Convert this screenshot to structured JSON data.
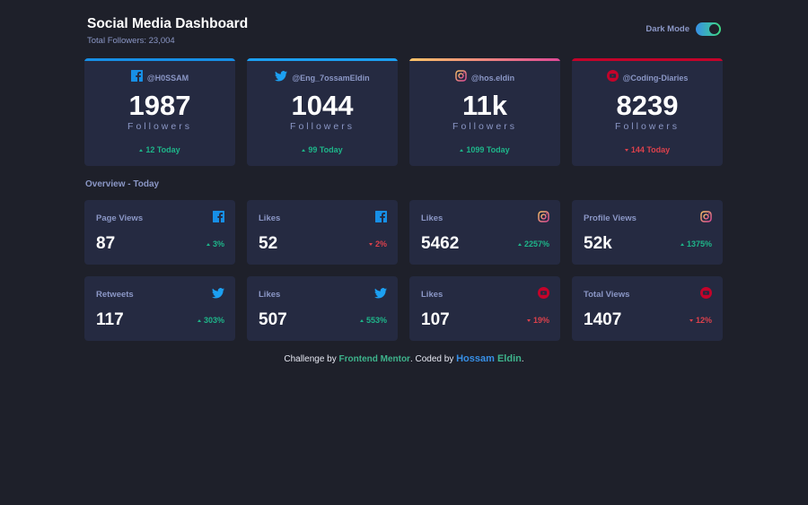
{
  "header": {
    "title": "Social Media Dashboard",
    "subtitle": "Total Followers: 23,004",
    "mode_label": "Dark Mode",
    "dark_mode_on": true
  },
  "colors": {
    "background": "#1e202a",
    "card": "#252a41",
    "text_muted": "#8b97c6",
    "up": "#1eb589",
    "down": "#dc414c",
    "facebook": "#178fe6",
    "twitter": "#1ca0f2",
    "instagram_gradient": [
      "#fdc468",
      "#df4996"
    ],
    "youtube": "#c4032a"
  },
  "followers": [
    {
      "platform": "facebook",
      "icon": "facebook-icon",
      "handle": "@H0SSAM",
      "count": "1987",
      "label": "Followers",
      "delta": "12 Today",
      "trend": "up"
    },
    {
      "platform": "twitter",
      "icon": "twitter-icon",
      "handle": "@Eng_7ossamEldin",
      "count": "1044",
      "label": "Followers",
      "delta": "99 Today",
      "trend": "up"
    },
    {
      "platform": "instagram",
      "icon": "instagram-icon",
      "handle": "@hos.eldin",
      "count": "11k",
      "label": "Followers",
      "delta": "1099 Today",
      "trend": "up"
    },
    {
      "platform": "youtube",
      "icon": "youtube-icon",
      "handle": "@Coding-Diaries",
      "count": "8239",
      "label": "Followers",
      "delta": "144 Today",
      "trend": "down"
    }
  ],
  "overview": {
    "title": "Overview - Today",
    "cards": [
      {
        "label": "Page Views",
        "icon": "facebook-icon",
        "platform": "facebook",
        "value": "87",
        "delta": "3%",
        "trend": "up"
      },
      {
        "label": "Likes",
        "icon": "facebook-icon",
        "platform": "facebook",
        "value": "52",
        "delta": "2%",
        "trend": "down"
      },
      {
        "label": "Likes",
        "icon": "instagram-icon",
        "platform": "instagram",
        "value": "5462",
        "delta": "2257%",
        "trend": "up"
      },
      {
        "label": "Profile Views",
        "icon": "instagram-icon",
        "platform": "instagram",
        "value": "52k",
        "delta": "1375%",
        "trend": "up"
      },
      {
        "label": "Retweets",
        "icon": "twitter-icon",
        "platform": "twitter",
        "value": "117",
        "delta": "303%",
        "trend": "up"
      },
      {
        "label": "Likes",
        "icon": "twitter-icon",
        "platform": "twitter",
        "value": "507",
        "delta": "553%",
        "trend": "up"
      },
      {
        "label": "Likes",
        "icon": "youtube-icon",
        "platform": "youtube",
        "value": "107",
        "delta": "19%",
        "trend": "down"
      },
      {
        "label": "Total Views",
        "icon": "youtube-icon",
        "platform": "youtube",
        "value": "1407",
        "delta": "12%",
        "trend": "down"
      }
    ]
  },
  "footer": {
    "prefix": "Challenge by",
    "link1": "Frontend Mentor",
    "middle": ". Coded by",
    "author_first": "Hossam",
    "author_last": "Eldin",
    "suffix": "."
  }
}
